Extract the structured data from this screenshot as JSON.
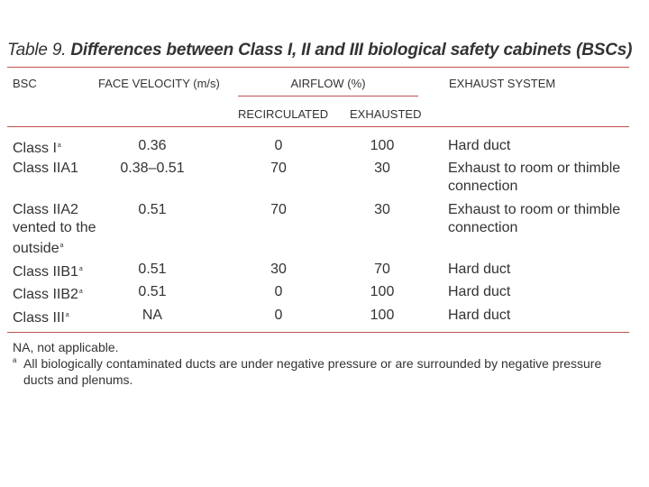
{
  "title": {
    "lead": "Table 9.",
    "text": "Differences between Class I, II and III biological safety cabinets (BSCs)"
  },
  "headers": {
    "bsc": "BSC",
    "face_velocity": "FACE VELOCITY (m/s)",
    "airflow": "AIRFLOW (%)",
    "recirculated": "RECIRCULATED",
    "exhausted": "EXHAUSTED",
    "exhaust_system": "EXHAUST SYSTEM"
  },
  "rows": [
    {
      "bsc": [
        "Class I"
      ],
      "mark": "a",
      "velocity": "0.36",
      "recirculated": "0",
      "exhausted": "100",
      "exhaust": [
        "Hard duct"
      ]
    },
    {
      "bsc": [
        "Class IIA1"
      ],
      "mark": "",
      "velocity": "0.38–0.51",
      "recirculated": "70",
      "exhausted": "30",
      "exhaust": [
        "Exhaust to room or thimble",
        "connection"
      ]
    },
    {
      "bsc": [
        "Class IIA2",
        "vented to the",
        "outside"
      ],
      "mark": "a",
      "velocity": "0.51",
      "recirculated": "70",
      "exhausted": "30",
      "exhaust": [
        "Exhaust to room or thimble",
        "connection"
      ]
    },
    {
      "bsc": [
        "Class IIB1"
      ],
      "mark": "a",
      "velocity": "0.51",
      "recirculated": "30",
      "exhausted": "70",
      "exhaust": [
        "Hard duct"
      ]
    },
    {
      "bsc": [
        "Class IIB2"
      ],
      "mark": "a",
      "velocity": "0.51",
      "recirculated": "0",
      "exhausted": "100",
      "exhaust": [
        "Hard duct"
      ]
    },
    {
      "bsc": [
        "Class III"
      ],
      "mark": "a",
      "velocity": "NA",
      "recirculated": "0",
      "exhausted": "100",
      "exhaust": [
        "Hard duct"
      ]
    }
  ],
  "footnotes": {
    "na": "NA, not applicable.",
    "mark": "a",
    "a": "All biologically contaminated ducts are under negative pressure or are surrounded by negative pressure",
    "a_cont": "ducts and plenums."
  },
  "colors": {
    "rule": "#c0504d",
    "text": "#333333"
  }
}
